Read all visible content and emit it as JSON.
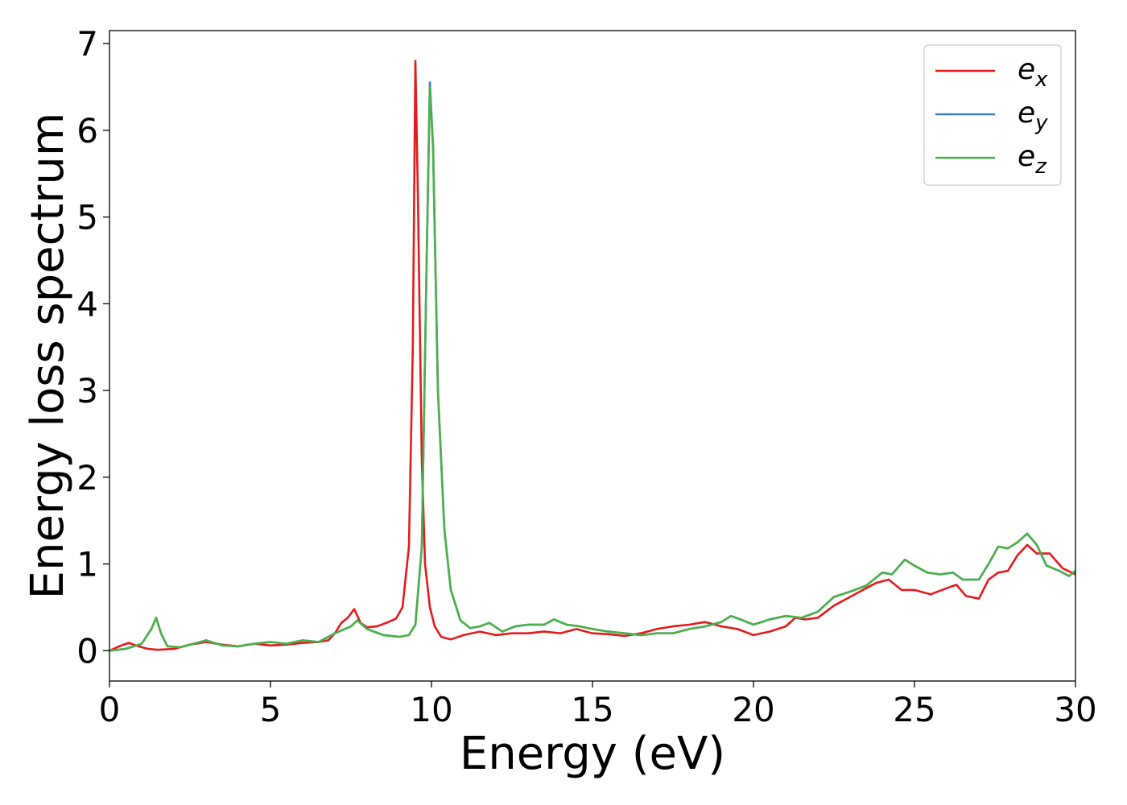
{
  "chart_data": {
    "type": "line",
    "xlabel": "Energy (eV)",
    "ylabel": "Energy loss spectrum",
    "xlim": [
      0,
      30
    ],
    "ylim": [
      -0.35,
      7.15
    ],
    "xticks": [
      0,
      5,
      10,
      15,
      20,
      25,
      30
    ],
    "yticks": [
      0,
      1,
      2,
      3,
      4,
      5,
      6,
      7
    ],
    "grid": false,
    "legend_position": "top-right",
    "series": [
      {
        "name": "e_x",
        "label_base": "e",
        "label_sub": "x",
        "color": "#e41a1c",
        "points": [
          [
            0,
            0.0
          ],
          [
            0.3,
            0.05
          ],
          [
            0.6,
            0.09
          ],
          [
            0.9,
            0.05
          ],
          [
            1.2,
            0.02
          ],
          [
            1.5,
            0.01
          ],
          [
            2.0,
            0.02
          ],
          [
            2.5,
            0.07
          ],
          [
            3.0,
            0.1
          ],
          [
            3.5,
            0.07
          ],
          [
            4.0,
            0.05
          ],
          [
            4.5,
            0.08
          ],
          [
            5.0,
            0.06
          ],
          [
            5.5,
            0.07
          ],
          [
            6.0,
            0.09
          ],
          [
            6.5,
            0.1
          ],
          [
            6.8,
            0.12
          ],
          [
            7.0,
            0.2
          ],
          [
            7.2,
            0.32
          ],
          [
            7.4,
            0.38
          ],
          [
            7.6,
            0.48
          ],
          [
            7.8,
            0.32
          ],
          [
            8.0,
            0.27
          ],
          [
            8.3,
            0.28
          ],
          [
            8.6,
            0.32
          ],
          [
            8.9,
            0.37
          ],
          [
            9.1,
            0.5
          ],
          [
            9.3,
            1.2
          ],
          [
            9.42,
            3.5
          ],
          [
            9.5,
            6.8
          ],
          [
            9.58,
            5.2
          ],
          [
            9.7,
            2.2
          ],
          [
            9.8,
            1.0
          ],
          [
            9.95,
            0.5
          ],
          [
            10.1,
            0.28
          ],
          [
            10.3,
            0.16
          ],
          [
            10.6,
            0.13
          ],
          [
            11.0,
            0.18
          ],
          [
            11.5,
            0.22
          ],
          [
            12.0,
            0.18
          ],
          [
            12.5,
            0.2
          ],
          [
            13.0,
            0.2
          ],
          [
            13.5,
            0.22
          ],
          [
            14.0,
            0.2
          ],
          [
            14.5,
            0.25
          ],
          [
            15.0,
            0.2
          ],
          [
            15.5,
            0.19
          ],
          [
            16.0,
            0.17
          ],
          [
            16.5,
            0.2
          ],
          [
            17.0,
            0.25
          ],
          [
            17.5,
            0.28
          ],
          [
            18.0,
            0.3
          ],
          [
            18.5,
            0.33
          ],
          [
            19.0,
            0.28
          ],
          [
            19.5,
            0.25
          ],
          [
            20.0,
            0.18
          ],
          [
            20.5,
            0.22
          ],
          [
            21.0,
            0.28
          ],
          [
            21.3,
            0.38
          ],
          [
            21.6,
            0.36
          ],
          [
            22.0,
            0.38
          ],
          [
            22.5,
            0.52
          ],
          [
            23.0,
            0.62
          ],
          [
            23.5,
            0.72
          ],
          [
            23.8,
            0.78
          ],
          [
            24.2,
            0.82
          ],
          [
            24.6,
            0.7
          ],
          [
            25.0,
            0.7
          ],
          [
            25.5,
            0.65
          ],
          [
            26.0,
            0.72
          ],
          [
            26.3,
            0.76
          ],
          [
            26.6,
            0.63
          ],
          [
            27.0,
            0.6
          ],
          [
            27.3,
            0.82
          ],
          [
            27.6,
            0.9
          ],
          [
            27.9,
            0.92
          ],
          [
            28.2,
            1.1
          ],
          [
            28.5,
            1.22
          ],
          [
            28.8,
            1.12
          ],
          [
            29.2,
            1.12
          ],
          [
            29.6,
            0.95
          ],
          [
            30.0,
            0.88
          ]
        ]
      },
      {
        "name": "e_y",
        "label_base": "e",
        "label_sub": "y",
        "color": "#377eb8",
        "points": [
          [
            0,
            0.0
          ],
          [
            0.5,
            0.02
          ],
          [
            1.0,
            0.08
          ],
          [
            1.3,
            0.25
          ],
          [
            1.45,
            0.38
          ],
          [
            1.6,
            0.2
          ],
          [
            1.8,
            0.05
          ],
          [
            2.2,
            0.04
          ],
          [
            2.6,
            0.08
          ],
          [
            3.0,
            0.12
          ],
          [
            3.5,
            0.06
          ],
          [
            4.0,
            0.05
          ],
          [
            4.5,
            0.08
          ],
          [
            5.0,
            0.1
          ],
          [
            5.5,
            0.08
          ],
          [
            6.0,
            0.12
          ],
          [
            6.5,
            0.1
          ],
          [
            7.0,
            0.2
          ],
          [
            7.5,
            0.28
          ],
          [
            7.7,
            0.35
          ],
          [
            8.0,
            0.25
          ],
          [
            8.5,
            0.18
          ],
          [
            9.0,
            0.16
          ],
          [
            9.3,
            0.18
          ],
          [
            9.5,
            0.3
          ],
          [
            9.7,
            1.2
          ],
          [
            9.85,
            4.5
          ],
          [
            9.95,
            6.55
          ],
          [
            10.05,
            5.8
          ],
          [
            10.2,
            3.0
          ],
          [
            10.4,
            1.4
          ],
          [
            10.6,
            0.7
          ],
          [
            10.9,
            0.35
          ],
          [
            11.2,
            0.26
          ],
          [
            11.5,
            0.28
          ],
          [
            11.8,
            0.32
          ],
          [
            12.2,
            0.22
          ],
          [
            12.6,
            0.28
          ],
          [
            13.0,
            0.3
          ],
          [
            13.5,
            0.3
          ],
          [
            13.8,
            0.36
          ],
          [
            14.2,
            0.3
          ],
          [
            14.6,
            0.28
          ],
          [
            15.0,
            0.25
          ],
          [
            15.5,
            0.22
          ],
          [
            16.0,
            0.2
          ],
          [
            16.5,
            0.18
          ],
          [
            17.0,
            0.2
          ],
          [
            17.5,
            0.2
          ],
          [
            18.0,
            0.25
          ],
          [
            18.5,
            0.28
          ],
          [
            19.0,
            0.33
          ],
          [
            19.3,
            0.4
          ],
          [
            19.6,
            0.36
          ],
          [
            20.0,
            0.3
          ],
          [
            20.5,
            0.36
          ],
          [
            21.0,
            0.4
          ],
          [
            21.5,
            0.38
          ],
          [
            22.0,
            0.45
          ],
          [
            22.5,
            0.62
          ],
          [
            23.0,
            0.68
          ],
          [
            23.5,
            0.75
          ],
          [
            24.0,
            0.9
          ],
          [
            24.3,
            0.88
          ],
          [
            24.7,
            1.05
          ],
          [
            25.0,
            0.98
          ],
          [
            25.4,
            0.9
          ],
          [
            25.8,
            0.88
          ],
          [
            26.2,
            0.9
          ],
          [
            26.5,
            0.82
          ],
          [
            27.0,
            0.82
          ],
          [
            27.3,
            1.0
          ],
          [
            27.6,
            1.2
          ],
          [
            27.9,
            1.18
          ],
          [
            28.2,
            1.25
          ],
          [
            28.5,
            1.35
          ],
          [
            28.8,
            1.22
          ],
          [
            29.1,
            0.98
          ],
          [
            29.5,
            0.92
          ],
          [
            29.8,
            0.86
          ],
          [
            30.0,
            0.92
          ]
        ]
      },
      {
        "name": "e_z",
        "label_base": "e",
        "label_sub": "z",
        "color": "#4daf4a",
        "points": [
          [
            0,
            0.0
          ],
          [
            0.5,
            0.02
          ],
          [
            1.0,
            0.08
          ],
          [
            1.3,
            0.25
          ],
          [
            1.45,
            0.38
          ],
          [
            1.6,
            0.2
          ],
          [
            1.8,
            0.05
          ],
          [
            2.2,
            0.04
          ],
          [
            2.6,
            0.08
          ],
          [
            3.0,
            0.12
          ],
          [
            3.5,
            0.06
          ],
          [
            4.0,
            0.05
          ],
          [
            4.5,
            0.08
          ],
          [
            5.0,
            0.1
          ],
          [
            5.5,
            0.08
          ],
          [
            6.0,
            0.12
          ],
          [
            6.5,
            0.1
          ],
          [
            7.0,
            0.2
          ],
          [
            7.5,
            0.28
          ],
          [
            7.7,
            0.35
          ],
          [
            8.0,
            0.25
          ],
          [
            8.5,
            0.18
          ],
          [
            9.0,
            0.16
          ],
          [
            9.3,
            0.18
          ],
          [
            9.5,
            0.3
          ],
          [
            9.7,
            1.2
          ],
          [
            9.85,
            4.5
          ],
          [
            9.95,
            6.5
          ],
          [
            10.05,
            5.8
          ],
          [
            10.2,
            3.0
          ],
          [
            10.4,
            1.4
          ],
          [
            10.6,
            0.7
          ],
          [
            10.9,
            0.35
          ],
          [
            11.2,
            0.26
          ],
          [
            11.5,
            0.28
          ],
          [
            11.8,
            0.32
          ],
          [
            12.2,
            0.22
          ],
          [
            12.6,
            0.28
          ],
          [
            13.0,
            0.3
          ],
          [
            13.5,
            0.3
          ],
          [
            13.8,
            0.36
          ],
          [
            14.2,
            0.3
          ],
          [
            14.6,
            0.28
          ],
          [
            15.0,
            0.25
          ],
          [
            15.5,
            0.22
          ],
          [
            16.0,
            0.2
          ],
          [
            16.5,
            0.18
          ],
          [
            17.0,
            0.2
          ],
          [
            17.5,
            0.2
          ],
          [
            18.0,
            0.25
          ],
          [
            18.5,
            0.28
          ],
          [
            19.0,
            0.33
          ],
          [
            19.3,
            0.4
          ],
          [
            19.6,
            0.36
          ],
          [
            20.0,
            0.3
          ],
          [
            20.5,
            0.36
          ],
          [
            21.0,
            0.4
          ],
          [
            21.5,
            0.38
          ],
          [
            22.0,
            0.45
          ],
          [
            22.5,
            0.62
          ],
          [
            23.0,
            0.68
          ],
          [
            23.5,
            0.75
          ],
          [
            24.0,
            0.9
          ],
          [
            24.3,
            0.88
          ],
          [
            24.7,
            1.05
          ],
          [
            25.0,
            0.98
          ],
          [
            25.4,
            0.9
          ],
          [
            25.8,
            0.88
          ],
          [
            26.2,
            0.9
          ],
          [
            26.5,
            0.82
          ],
          [
            27.0,
            0.82
          ],
          [
            27.3,
            1.0
          ],
          [
            27.6,
            1.2
          ],
          [
            27.9,
            1.18
          ],
          [
            28.2,
            1.25
          ],
          [
            28.5,
            1.35
          ],
          [
            28.8,
            1.22
          ],
          [
            29.1,
            0.98
          ],
          [
            29.5,
            0.92
          ],
          [
            29.8,
            0.86
          ],
          [
            30.0,
            0.92
          ]
        ]
      }
    ]
  }
}
